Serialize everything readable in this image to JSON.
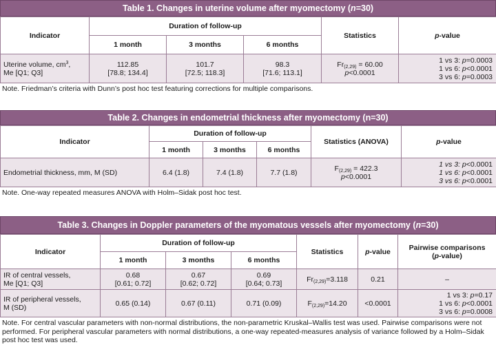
{
  "table1": {
    "title_prefix": "Table 1. Changes in uterine volume after myomectomy (",
    "title_n": "n",
    "title_suffix": "=30)",
    "col_indicator": "Indicator",
    "col_duration": "Duration of follow-up",
    "col_statistics": "Statistics",
    "col_p": "p",
    "col_p_suffix": "-value",
    "sub_1": "1 month",
    "sub_3": "3 months",
    "sub_6": "6 months",
    "row_label_line1": "Uterine volume, cm",
    "row_label_sup": "3",
    "row_label_comma": ",",
    "row_label_line2": "Me [Q1; Q3]",
    "m1_value": "112.85",
    "m1_range": "[78.8; 134.4]",
    "m3_value": "101.7",
    "m3_range": "[72.5; 118.3]",
    "m6_value": "98.3",
    "m6_range": "[71.6; 113.1]",
    "stat_prefix": "Fr",
    "stat_sub": "(2,29)",
    "stat_value": " = 60.00",
    "stat_p": "p",
    "stat_p_value": "<0.0001",
    "pv1_label": "1 vs 3: ",
    "pv1_p": "p",
    "pv1_value": "=0.0003",
    "pv2_label": "1 vs 6: ",
    "pv2_p": "p",
    "pv2_value": "<0.0001",
    "pv3_label": "3 vs 6: ",
    "pv3_p": "p",
    "pv3_value": "=0.0003",
    "note": "Note. Friedman’s criteria with Dunn’s post hoc test featuring corrections for multiple comparisons."
  },
  "table2": {
    "title": "Table 2. Changes in endometrial thickness after myomectomy (n=30)",
    "col_indicator": "Indicator",
    "col_duration": "Duration of follow-up",
    "col_statistics": "Statistics (ANOVA)",
    "col_p": "p",
    "col_p_suffix": "-value",
    "sub_1": "1 month",
    "sub_3": "3 months",
    "sub_6": "6 months",
    "row_label": "Endometrial thickness, mm, M (SD)",
    "m1": "6.4 (1.8)",
    "m3": "7.4 (1.8)",
    "m6": "7.7 (1.8)",
    "stat_prefix": "F",
    "stat_sub": "(2,29)",
    "stat_value": " = 422.3",
    "stat_p": "p",
    "stat_p_value": "<0.0001",
    "pv1_label": "1 vs 3: ",
    "pv1_p": "p",
    "pv1_value": "<0.0001",
    "pv2_label": "1 vs 6: ",
    "pv2_p": "p",
    "pv2_value": "<0.0001",
    "pv3_label": "3 vs 6: ",
    "pv3_p": "p",
    "pv3_value": "<0.0001",
    "note": "Note. One-way repeated measures ANOVA with Holm–Sidak post hoc test."
  },
  "table3": {
    "title_prefix": "Table 3. Changes in Doppler parameters of the myomatous vessels after myomectomy (",
    "title_n": "n",
    "title_suffix": "=30)",
    "col_indicator": "Indicator",
    "col_duration": "Duration of follow-up",
    "col_statistics": "Statistics",
    "col_p": "p",
    "col_p_suffix": "-value",
    "col_pairwise_line1": "Pairwise comparisons",
    "col_pairwise_line2_prefix": "(",
    "col_pairwise_line2_p": "p",
    "col_pairwise_line2_suffix": "-value)",
    "sub_1": "1 month",
    "sub_3": "3 months",
    "sub_6": "6 months",
    "row1_label_line1": "IR of central vessels,",
    "row1_label_line2": "Me [Q1; Q3]",
    "row1_m1_value": "0.68",
    "row1_m1_range": "[0.61; 0.72]",
    "row1_m3_value": "0.67",
    "row1_m3_range": "[0.62; 0.72]",
    "row1_m6_value": "0.69",
    "row1_m6_range": "[0.64; 0.73]",
    "row1_stat_prefix": "Fr",
    "row1_stat_sub": "(2,29)",
    "row1_stat_value": "=3.118",
    "row1_p": "0.21",
    "row1_pairwise": "–",
    "row2_label_line1": "IR of peripheral vessels,",
    "row2_label_line2": "M (SD)",
    "row2_m1": "0.65 (0.14)",
    "row2_m3": "0.67 (0.11)",
    "row2_m6": "0.71 (0.09)",
    "row2_stat_prefix": "F",
    "row2_stat_sub": "(2,29)",
    "row2_stat_value": "=14.20",
    "row2_p": "<0.0001",
    "pv1_label": "1 vs 3: ",
    "pv1_p": "p",
    "pv1_value": "=0.17",
    "pv2_label": "1 vs 6: ",
    "pv2_p": "p",
    "pv2_value": "<0.0001",
    "pv3_label": "3 vs 6: ",
    "pv3_p": "p",
    "pv3_value": "=0.0008",
    "note": "Note. For central vascular parameters with non-normal distributions, the non-parametric Kruskal–Wallis test was used. Pairwise comparisons were not performed. For peripheral vascular parameters with normal distributions, a one-way repeated-measures analysis of variance followed by a Holm–Sidak post hoc test was used."
  }
}
